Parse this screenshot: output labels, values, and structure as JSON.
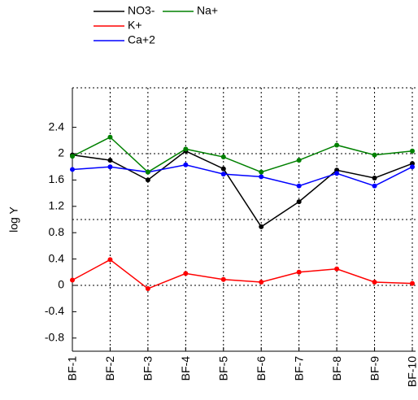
{
  "chart_data": {
    "type": "line",
    "y_label": "log Y",
    "categories": [
      "BF-1",
      "BF-2",
      "BF-3",
      "BF-4",
      "BF-5",
      "BF-6",
      "BF-7",
      "BF-8",
      "BF-9",
      "BF-10"
    ],
    "series": [
      {
        "name": "NO3-",
        "color": "#000000",
        "values": [
          1.98,
          1.9,
          1.6,
          2.04,
          1.77,
          0.89,
          1.27,
          1.75,
          1.63,
          1.85
        ]
      },
      {
        "name": "K+",
        "color": "#ff0000",
        "values": [
          0.08,
          0.39,
          -0.05,
          0.18,
          0.09,
          0.05,
          0.2,
          0.25,
          0.05,
          0.03
        ]
      },
      {
        "name": "Ca+2",
        "color": "#0000ff",
        "values": [
          1.76,
          1.8,
          1.72,
          1.83,
          1.69,
          1.65,
          1.51,
          1.7,
          1.51,
          1.8
        ]
      },
      {
        "name": "Na+",
        "color": "#008000",
        "values": [
          1.96,
          2.25,
          1.72,
          2.07,
          1.95,
          1.72,
          1.9,
          2.13,
          1.98,
          2.04
        ]
      }
    ],
    "ylim": [
      -1,
      3
    ],
    "yticks": [
      -0.8,
      -0.4,
      0,
      0.4,
      0.8,
      1.2,
      1.6,
      2,
      2.4
    ],
    "ygrid": [
      0,
      1,
      2,
      3
    ],
    "grid": true
  }
}
